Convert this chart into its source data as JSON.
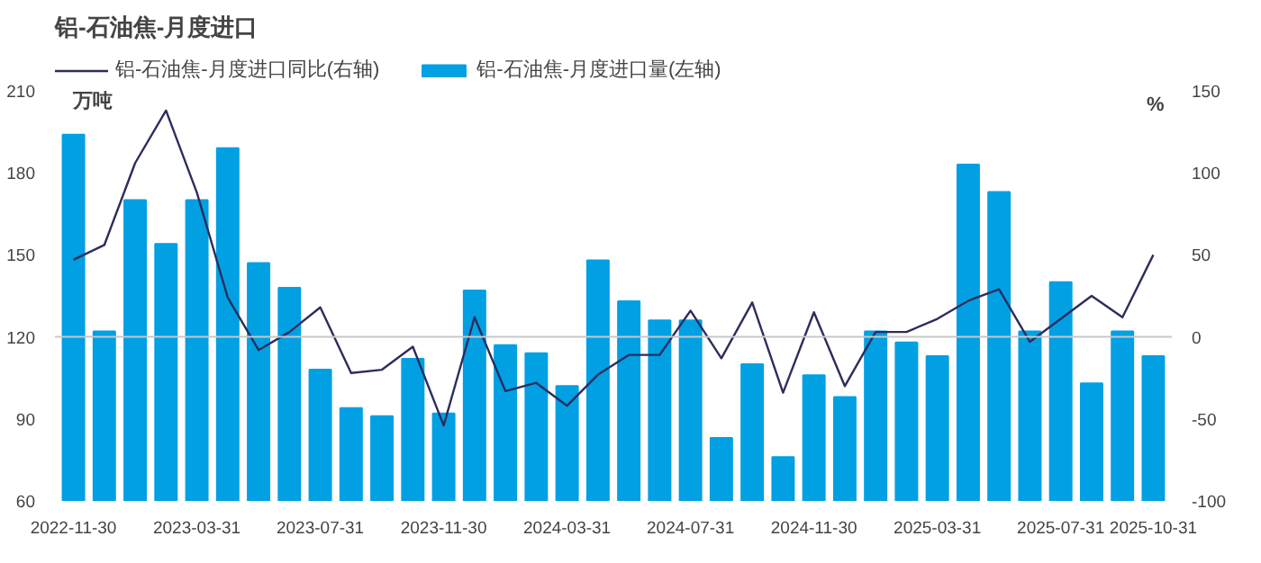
{
  "chart_data": {
    "type": "bar",
    "title": "铝-石油焦-月度进口",
    "ylabel": "万吨",
    "y2label": "%",
    "categories": [
      "2022-11-30",
      null,
      null,
      null,
      "2023-03-31",
      null,
      null,
      null,
      "2023-07-31",
      null,
      null,
      null,
      "2023-11-30",
      null,
      null,
      null,
      "2024-03-31",
      null,
      null,
      null,
      "2024-07-31",
      null,
      null,
      null,
      "2024-11-30",
      null,
      null,
      null,
      "2025-03-31",
      null,
      null,
      null,
      "2025-07-31",
      null,
      null,
      "2025-10-31"
    ],
    "series": [
      {
        "name": "铝-石油焦-月度进口同比(右轴)",
        "type": "line",
        "axis": "y2",
        "color": "#2b2d5e",
        "values": [
          47,
          56,
          106,
          138,
          88,
          24,
          -8,
          3,
          18,
          -22,
          -20,
          -6,
          -54,
          12,
          -33,
          -28,
          -42,
          -23,
          -11,
          -11,
          16,
          -13,
          21,
          -34,
          15,
          -30,
          3,
          3,
          11,
          22,
          29,
          -3,
          11,
          25,
          12,
          50
        ]
      },
      {
        "name": "铝-石油焦-月度进口量(左轴)",
        "color": "#00a0e3",
        "values": [
          194,
          122,
          170,
          154,
          170,
          189,
          147,
          138,
          108,
          94,
          91,
          112,
          92,
          137,
          117,
          114,
          102,
          148,
          133,
          126,
          126,
          83,
          110,
          76,
          106,
          98,
          122,
          118,
          113,
          183,
          173,
          122,
          140,
          103,
          122,
          113
        ]
      }
    ],
    "ylim": [
      60,
      210
    ],
    "yticks": [
      60,
      90,
      120,
      150,
      180,
      210
    ],
    "y2lim": [
      -100,
      150
    ],
    "y2ticks": [
      -100,
      -50,
      0,
      50,
      100,
      150
    ],
    "ref_lines": [
      {
        "axis": "y2",
        "value": 0,
        "color": "#c8c8c8"
      }
    ],
    "legend": "top"
  }
}
